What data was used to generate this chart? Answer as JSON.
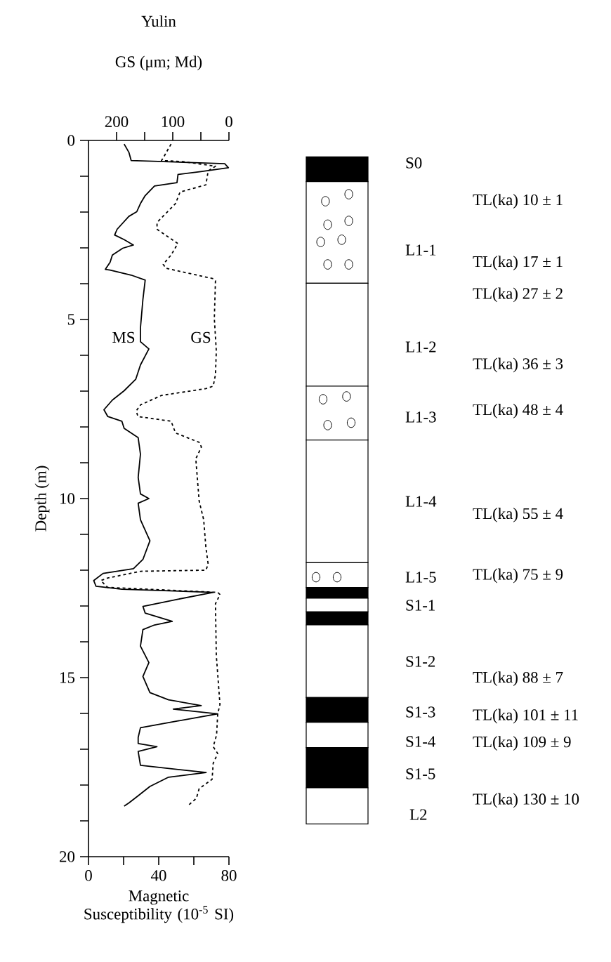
{
  "chart_data": {
    "type": "line",
    "title": "Yulin",
    "xlabel": "Magnetic Susceptibility (10$^{-5}$ SI)",
    "x2label": "GS (μm; Md)",
    "ylabel": "Depth (m)",
    "xlim": [
      0,
      80
    ],
    "xticks": [
      0,
      {
        "value": 20,
        "label": null
      },
      40,
      {
        "value": 60,
        "label": null
      },
      80
    ],
    "x2lim": [
      250,
      0
    ],
    "x2ticks": [
      200,
      {
        "value": 150,
        "label": null
      },
      100,
      {
        "value": 50,
        "label": null
      },
      0
    ],
    "ylim": [
      20,
      0
    ],
    "yticks": [
      0,
      {
        "value": 1,
        "label": null
      },
      {
        "value": 2,
        "label": null
      },
      {
        "value": 3,
        "label": null
      },
      {
        "value": 4,
        "label": null
      },
      5,
      {
        "value": 6,
        "label": null
      },
      {
        "value": 7,
        "label": null
      },
      {
        "value": 8,
        "label": null
      },
      {
        "value": 9,
        "label": null
      },
      10,
      {
        "value": 11,
        "label": null
      },
      {
        "value": 12,
        "label": null
      },
      {
        "value": 13,
        "label": null
      },
      {
        "value": 14,
        "label": null
      },
      15,
      {
        "value": 16,
        "label": null
      },
      {
        "value": 17,
        "label": null
      },
      {
        "value": 18,
        "label": null
      },
      {
        "value": 19,
        "label": null
      },
      20
    ],
    "series": [
      {
        "name": "MS",
        "color": "#000000",
        "line_style": "solid",
        "x": [
          20.3,
          23,
          24.3,
          77.6,
          79.7,
          64,
          51,
          50.4,
          37.6,
          32.3,
          29.6,
          27.5,
          23,
          16.3,
          14.9,
          20.3,
          25.6,
          19.5,
          13.6,
          12.3,
          9.6,
          12.3,
          24.3,
          32.3,
          31,
          29.6,
          29.6,
          34.4,
          29.6,
          26.9,
          20.3,
          13.6,
          8.8,
          11,
          19,
          20.3,
          28.3,
          29.6,
          28.3,
          29.6,
          34.4,
          28.3,
          29.6,
          35,
          31,
          25.6,
          8.3,
          3,
          4.3,
          19,
          71,
          51,
          31,
          32.3,
          47.7,
          37.6,
          31,
          29.6,
          34.4,
          31,
          35,
          45.6,
          64.2,
          48.3,
          73.6,
          51,
          29.6,
          28.3,
          28.3,
          39,
          28.3,
          29.6,
          67,
          45.6,
          35,
          28.3,
          23,
          20.3,
          20.3
        ],
        "values": [
          0.1,
          0.33,
          0.56,
          0.65,
          0.76,
          0.87,
          0.95,
          1.18,
          1.27,
          1.54,
          1.76,
          1.99,
          2.12,
          2.48,
          2.64,
          2.77,
          2.92,
          3.01,
          3.2,
          3.4,
          3.6,
          3.62,
          3.76,
          3.9,
          4.44,
          5.23,
          5.62,
          5.82,
          6.27,
          6.67,
          6.99,
          7.25,
          7.52,
          7.71,
          7.84,
          8.04,
          8.3,
          8.76,
          9.41,
          9.87,
          10,
          10.13,
          10.59,
          11.18,
          11.7,
          11.96,
          12.09,
          12.29,
          12.45,
          12.53,
          12.62,
          12.81,
          13.01,
          13.2,
          13.43,
          13.53,
          13.66,
          14.12,
          14.58,
          14.97,
          15.42,
          15.62,
          15.78,
          15.88,
          16.01,
          16.21,
          16.4,
          16.67,
          16.84,
          16.93,
          17.06,
          17.45,
          17.65,
          17.78,
          18.04,
          18.3,
          18.5,
          18.59,
          18.59
        ]
      },
      {
        "name": "GS",
        "color": "#000000",
        "line_style": "dotted",
        "axis": "x2",
        "x": [
          103,
          116,
          120,
          82.5,
          24,
          37,
          41,
          87,
          95,
          128,
          128,
          91,
          103,
          117,
          112,
          28,
          24,
          26,
          22.5,
          24,
          28,
          41,
          120,
          157,
          165,
          162,
          103,
          95,
          53,
          49,
          59,
          53,
          45,
          41,
          37,
          41,
          157,
          216,
          228,
          216,
          20,
          16,
          24,
          22.5,
          16,
          20,
          22,
          28,
          20,
          28,
          30,
          53,
          58,
          74
        ],
        "values": [
          0.1,
          0.46,
          0.56,
          0.59,
          0.72,
          0.85,
          1.24,
          1.44,
          1.76,
          2.29,
          2.48,
          2.88,
          3.2,
          3.46,
          3.57,
          3.86,
          3.92,
          4.97,
          5.88,
          6.54,
          6.86,
          6.93,
          7.12,
          7.38,
          7.55,
          7.71,
          7.84,
          8.17,
          8.43,
          8.56,
          8.89,
          10.07,
          10.59,
          11.37,
          11.83,
          12,
          12.03,
          12.22,
          12.29,
          12.48,
          12.62,
          12.68,
          12.94,
          14.38,
          15.75,
          16.01,
          16.6,
          16.93,
          17.12,
          17.39,
          17.84,
          18.1,
          18.37,
          18.59
        ]
      }
    ],
    "annotations": [
      "S0",
      "L1-1",
      "L1-2",
      "L1-3",
      "L1-4",
      "L1-5",
      "S1-1",
      "S1-2",
      "S1-3",
      "S1-4",
      "S1-5",
      "L2",
      "TL(ka) 10 ± 1",
      "TL(ka) 17 ± 1",
      "TL(ka) 27 ± 2",
      "TL(ka) 36 ± 3",
      "TL(ka) 48 ± 4",
      "TL(ka) 55 ± 4",
      "TL(ka) 75 ± 9",
      "TL(ka) 88 ± 7",
      "TL(ka) 101 ± 11",
      "TL(ka) 109 ± 9",
      "TL(ka) 130 ± 10"
    ]
  }
}
